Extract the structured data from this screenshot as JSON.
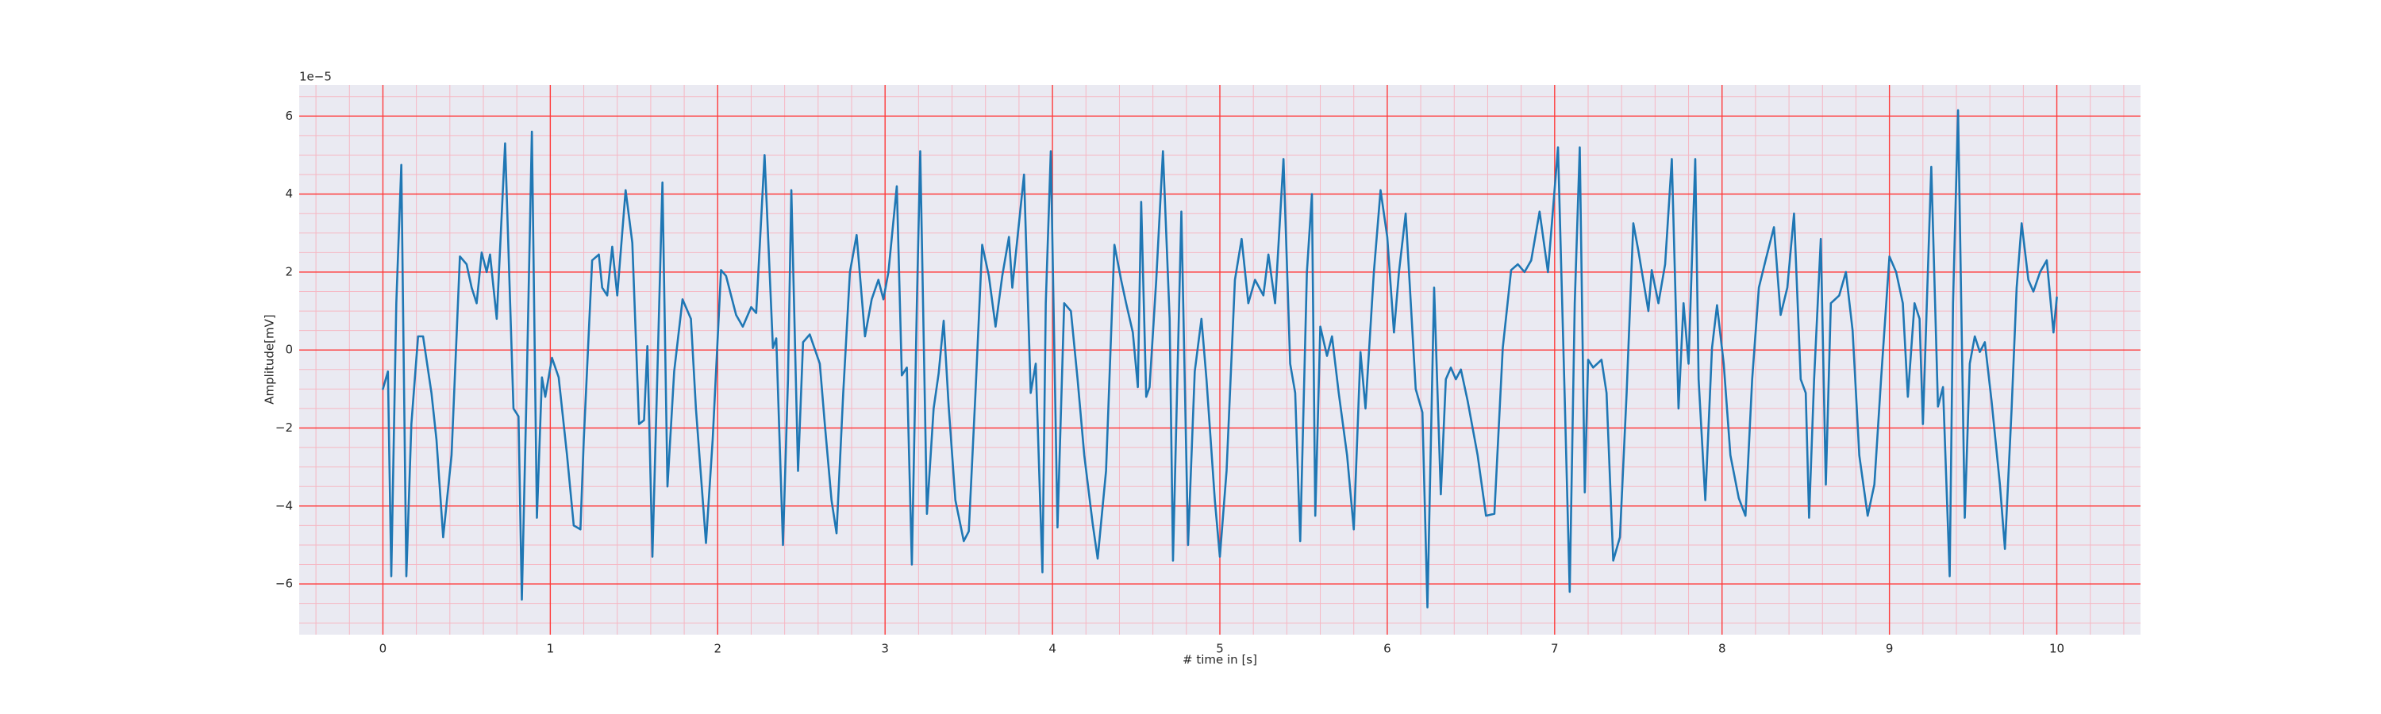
{
  "chart_data": {
    "type": "line",
    "xlabel": "# time in [s]",
    "ylabel": "Amplitude[mV]",
    "y_offset_label": "1e−5",
    "color": "#1f77b4",
    "background": "#eaeaf2",
    "grid": true,
    "grid_color": "#ff3b3b",
    "minor_grid": true,
    "minor_grid_color": "#f6b7c3",
    "xlim": [
      -0.5,
      10.5
    ],
    "ylim": [
      -7.3,
      6.8
    ],
    "xticks": [
      0,
      1,
      2,
      3,
      4,
      5,
      6,
      7,
      8,
      9,
      10
    ],
    "yticks": [
      {
        "value": -6,
        "label": "−6"
      },
      {
        "value": -4,
        "label": "−4"
      },
      {
        "value": -2,
        "label": "−2"
      },
      0,
      2,
      4,
      6
    ],
    "xminorticks": [
      -0.4,
      -0.2,
      0.2,
      0.4,
      0.6,
      0.8,
      1.2,
      1.4,
      1.6,
      1.8,
      2.2,
      2.4,
      2.6,
      2.8,
      3.2,
      3.4,
      3.6,
      3.8,
      4.2,
      4.4,
      4.6,
      4.8,
      5.2,
      5.4,
      5.6,
      5.8,
      6.2,
      6.4,
      6.6,
      6.8,
      7.2,
      7.4,
      7.6,
      7.8,
      8.2,
      8.4,
      8.6,
      8.8,
      9.2,
      9.4,
      9.6,
      9.8,
      10.2,
      10.4
    ],
    "yminorticks": [
      -7,
      -6.5,
      -5.5,
      -5,
      -4.5,
      -3.5,
      -3,
      -2.5,
      -1.5,
      -1,
      -0.5,
      0.5,
      1,
      1.5,
      2.5,
      3,
      3.5,
      4.5,
      5,
      5.5,
      6.5
    ],
    "x": [
      0,
      0.03,
      0.05,
      0.08,
      0.11,
      0.14,
      0.17,
      0.21,
      0.24,
      0.29,
      0.32,
      0.36,
      0.41,
      0.46,
      0.5,
      0.53,
      0.56,
      0.59,
      0.62,
      0.64,
      0.68,
      0.73,
      0.78,
      0.81,
      0.83,
      0.86,
      0.89,
      0.92,
      0.95,
      0.97,
      1.01,
      1.05,
      1.1,
      1.14,
      1.18,
      1.2,
      1.25,
      1.29,
      1.31,
      1.34,
      1.37,
      1.4,
      1.45,
      1.49,
      1.53,
      1.56,
      1.58,
      1.61,
      1.64,
      1.67,
      1.7,
      1.74,
      1.79,
      1.84,
      1.87,
      1.93,
      1.97,
      2.02,
      2.05,
      2.11,
      2.15,
      2.2,
      2.23,
      2.28,
      2.33,
      2.35,
      2.39,
      2.42,
      2.44,
      2.48,
      2.51,
      2.55,
      2.61,
      2.64,
      2.68,
      2.71,
      2.75,
      2.79,
      2.83,
      2.88,
      2.92,
      2.96,
      2.99,
      3.02,
      3.07,
      3.1,
      3.13,
      3.16,
      3.19,
      3.21,
      3.25,
      3.29,
      3.32,
      3.35,
      3.38,
      3.42,
      3.47,
      3.5,
      3.54,
      3.58,
      3.62,
      3.66,
      3.7,
      3.74,
      3.76,
      3.83,
      3.87,
      3.9,
      3.94,
      3.96,
      3.99,
      4.03,
      4.07,
      4.11,
      4.15,
      4.19,
      4.24,
      4.27,
      4.32,
      4.37,
      4.41,
      4.44,
      4.48,
      4.51,
      4.53,
      4.56,
      4.58,
      4.62,
      4.66,
      4.7,
      4.72,
      4.77,
      4.81,
      4.85,
      4.89,
      4.92,
      4.97,
      5.0,
      5.04,
      5.09,
      5.13,
      5.17,
      5.21,
      5.26,
      5.29,
      5.33,
      5.38,
      5.42,
      5.45,
      5.48,
      5.52,
      5.55,
      5.57,
      5.6,
      5.64,
      5.67,
      5.71,
      5.76,
      5.8,
      5.84,
      5.87,
      5.92,
      5.96,
      6.0,
      6.04,
      6.07,
      6.11,
      6.17,
      6.21,
      6.24,
      6.28,
      6.32,
      6.35,
      6.38,
      6.41,
      6.44,
      6.48,
      6.54,
      6.59,
      6.64,
      6.69,
      6.74,
      6.78,
      6.82,
      6.86,
      6.91,
      6.96,
      7.02,
      7.06,
      7.09,
      7.12,
      7.15,
      7.18,
      7.2,
      7.23,
      7.28,
      7.31,
      7.35,
      7.39,
      7.43,
      7.47,
      7.5,
      7.56,
      7.58,
      7.62,
      7.66,
      7.7,
      7.74,
      7.77,
      7.8,
      7.84,
      7.86,
      7.9,
      7.94,
      7.97,
      8.01,
      8.05,
      8.1,
      8.14,
      8.18,
      8.22,
      8.26,
      8.31,
      8.35,
      8.39,
      8.43,
      8.47,
      8.5,
      8.52,
      8.55,
      8.59,
      8.62,
      8.65,
      8.7,
      8.74,
      8.78,
      8.82,
      8.87,
      8.91,
      8.95,
      9.0,
      9.04,
      9.08,
      9.11,
      9.15,
      9.18,
      9.2,
      9.25,
      9.29,
      9.32,
      9.36,
      9.38,
      9.41,
      9.45,
      9.48,
      9.51,
      9.54,
      9.57,
      9.61,
      9.66,
      9.69,
      9.73,
      9.76,
      9.79,
      9.83,
      9.86,
      9.9,
      9.94,
      9.98,
      10.0
    ],
    "values": [
      -1.0,
      -0.55,
      -5.8,
      1.2,
      4.75,
      -5.8,
      -1.9,
      0.35,
      0.35,
      -1.1,
      -2.3,
      -4.8,
      -2.7,
      2.4,
      2.2,
      1.6,
      1.2,
      2.5,
      2.0,
      2.45,
      0.8,
      5.3,
      -1.5,
      -1.7,
      -6.4,
      -0.7,
      5.6,
      -4.3,
      -0.7,
      -1.2,
      -0.2,
      -0.7,
      -2.7,
      -4.5,
      -4.6,
      -2.3,
      2.3,
      2.45,
      1.6,
      1.4,
      2.65,
      1.4,
      4.1,
      2.75,
      -1.9,
      -1.8,
      0.1,
      -5.3,
      -0.55,
      4.3,
      -3.5,
      -0.55,
      1.3,
      0.8,
      -1.5,
      -4.95,
      -2.3,
      2.05,
      1.9,
      0.9,
      0.6,
      1.1,
      0.95,
      5.0,
      0.05,
      0.3,
      -5.0,
      -0.75,
      4.1,
      -3.1,
      0.2,
      0.4,
      -0.35,
      -1.9,
      -3.85,
      -4.7,
      -1.1,
      2.0,
      2.95,
      0.35,
      1.3,
      1.8,
      1.3,
      2.0,
      4.2,
      -0.65,
      -0.45,
      -5.5,
      1.2,
      5.1,
      -4.2,
      -1.5,
      -0.6,
      0.75,
      -1.45,
      -3.85,
      -4.9,
      -4.65,
      -1.1,
      2.7,
      1.9,
      0.6,
      1.9,
      2.9,
      1.6,
      4.5,
      -1.1,
      -0.35,
      -5.7,
      1.2,
      5.1,
      -4.55,
      1.2,
      1.0,
      -0.75,
      -2.7,
      -4.45,
      -5.35,
      -3.1,
      2.7,
      1.8,
      1.2,
      0.45,
      -0.95,
      3.8,
      -1.2,
      -0.95,
      1.8,
      5.1,
      0.8,
      -5.4,
      3.55,
      -5.0,
      -0.55,
      0.8,
      -0.75,
      -3.85,
      -5.3,
      -3.1,
      1.8,
      2.85,
      1.2,
      1.8,
      1.4,
      2.45,
      1.2,
      4.9,
      -0.35,
      -1.1,
      -4.9,
      2.0,
      4.0,
      -4.25,
      0.6,
      -0.15,
      0.35,
      -1.1,
      -2.7,
      -4.6,
      -0.05,
      -1.5,
      2.0,
      4.1,
      2.9,
      0.45,
      2.0,
      3.5,
      -1.0,
      -1.6,
      -6.6,
      1.6,
      -3.7,
      -0.75,
      -0.45,
      -0.75,
      -0.5,
      -1.3,
      -2.7,
      -4.25,
      -4.2,
      0.05,
      2.05,
      2.2,
      2.0,
      2.3,
      3.55,
      2.0,
      5.2,
      -1.2,
      -6.2,
      1.2,
      5.2,
      -3.65,
      -0.25,
      -0.45,
      -0.25,
      -1.1,
      -5.4,
      -4.8,
      -1.1,
      3.25,
      2.55,
      1.0,
      2.05,
      1.2,
      2.2,
      4.9,
      -1.5,
      1.2,
      -0.35,
      4.9,
      -0.75,
      -3.85,
      0.05,
      1.15,
      -0.35,
      -2.7,
      -3.8,
      -4.25,
      -0.75,
      1.6,
      2.3,
      3.15,
      0.9,
      1.6,
      3.5,
      -0.75,
      -1.1,
      -4.3,
      -0.75,
      2.85,
      -3.45,
      1.2,
      1.4,
      2.0,
      0.5,
      -2.7,
      -4.25,
      -3.45,
      -0.75,
      2.4,
      2.0,
      1.2,
      -1.2,
      1.2,
      0.8,
      -1.9,
      4.7,
      -1.45,
      -0.95,
      -5.8,
      1.2,
      6.15,
      -4.3,
      -0.35,
      0.35,
      -0.05,
      0.2,
      -1.3,
      -3.45,
      -5.1,
      -1.5,
      1.6,
      3.25,
      1.8,
      1.5,
      2.0,
      2.3,
      0.45,
      1.35
    ]
  }
}
